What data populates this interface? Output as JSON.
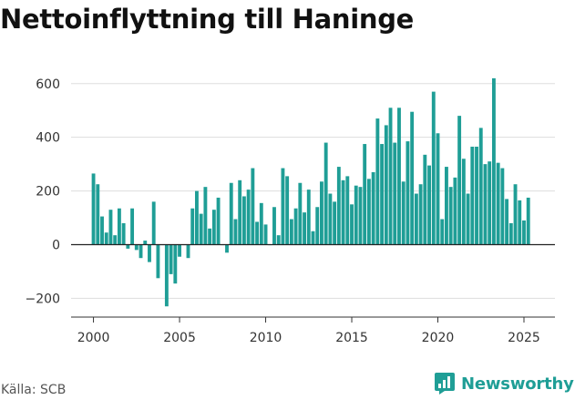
{
  "chart_data": {
    "type": "bar",
    "title": "Nettoinflyttning till Haninge",
    "xlabel": "",
    "ylabel": "",
    "ylim": [
      -270,
      640
    ],
    "xlim": [
      1998.7,
      2026.8
    ],
    "y_ticks": [
      -200,
      0,
      200,
      400,
      600
    ],
    "y_tick_labels": [
      "−200",
      "0",
      "200",
      "400",
      "600"
    ],
    "x_ticks": [
      2000,
      2005,
      2010,
      2015,
      2020,
      2025
    ],
    "x_tick_labels": [
      "2000",
      "2005",
      "2010",
      "2015",
      "2020",
      "2025"
    ],
    "grid": true,
    "legend": "none",
    "bar_color": "#1f9e96",
    "period": "quarterly",
    "start": "2000Q1",
    "values": [
      265,
      225,
      105,
      45,
      130,
      35,
      135,
      80,
      -15,
      135,
      -20,
      -50,
      15,
      -65,
      160,
      -125,
      0,
      -230,
      -110,
      -145,
      -45,
      0,
      -50,
      135,
      200,
      115,
      215,
      60,
      130,
      175,
      0,
      -30,
      230,
      95,
      240,
      180,
      205,
      285,
      85,
      155,
      75,
      0,
      140,
      35,
      285,
      255,
      95,
      135,
      230,
      120,
      205,
      50,
      140,
      235,
      380,
      190,
      160,
      290,
      240,
      255,
      150,
      220,
      215,
      375,
      245,
      270,
      470,
      375,
      445,
      510,
      380,
      510,
      235,
      385,
      495,
      190,
      225,
      335,
      295,
      570,
      415,
      95,
      290,
      215,
      250,
      480,
      320,
      190,
      365,
      365,
      435,
      300,
      310,
      620,
      305,
      285,
      170,
      80,
      225,
      165,
      90,
      175
    ]
  },
  "footer": {
    "source": "Källa: SCB",
    "brand": "Newsworthy",
    "brand_icon": "newsworthy-logo-icon",
    "brand_color": "#1f9e96"
  }
}
